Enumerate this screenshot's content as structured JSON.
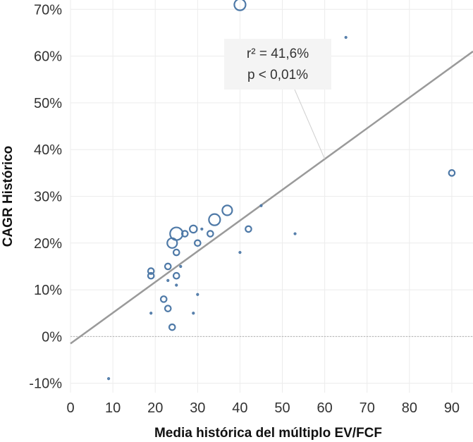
{
  "chart_data": {
    "type": "scatter",
    "title": "",
    "xlabel": "Media histórica del múltiplo EV/FCF",
    "ylabel": "CAGR Histórico",
    "xlim": [
      0,
      95
    ],
    "ylim": [
      -12,
      72
    ],
    "x_ticks": [
      0,
      10,
      20,
      30,
      40,
      50,
      60,
      70,
      80,
      90
    ],
    "x_tick_labels": [
      "0",
      "10",
      "20",
      "30",
      "40",
      "50",
      "60",
      "70",
      "80",
      "90"
    ],
    "y_ticks": [
      -10,
      0,
      10,
      20,
      30,
      40,
      50,
      60,
      70
    ],
    "y_tick_labels": [
      "-10%",
      "0%",
      "10%",
      "20%",
      "30%",
      "40%",
      "50%",
      "60%",
      "70%"
    ],
    "grid": true,
    "legend": "none",
    "colors": {
      "marker": "#4e79a7",
      "trendline": "#9a9a9a",
      "grid": "#ececec",
      "zero_line": "#b0b0b0",
      "annotation_bg": "#f4f4f4"
    },
    "points": [
      {
        "x": 40,
        "y": 71,
        "size": 5
      },
      {
        "x": 65,
        "y": 64,
        "size": 1
      },
      {
        "x": 90,
        "y": 35,
        "size": 2
      },
      {
        "x": 45,
        "y": 28,
        "size": 1
      },
      {
        "x": 37,
        "y": 27,
        "size": 4
      },
      {
        "x": 34,
        "y": 25,
        "size": 5
      },
      {
        "x": 29,
        "y": 23,
        "size": 3
      },
      {
        "x": 31,
        "y": 23,
        "size": 1
      },
      {
        "x": 42,
        "y": 23,
        "size": 2
      },
      {
        "x": 25,
        "y": 22,
        "size": 6
      },
      {
        "x": 27,
        "y": 22,
        "size": 2
      },
      {
        "x": 33,
        "y": 22,
        "size": 2
      },
      {
        "x": 53,
        "y": 22,
        "size": 1
      },
      {
        "x": 24,
        "y": 20,
        "size": 4
      },
      {
        "x": 30,
        "y": 20,
        "size": 2
      },
      {
        "x": 25,
        "y": 18,
        "size": 2
      },
      {
        "x": 40,
        "y": 18,
        "size": 1
      },
      {
        "x": 23,
        "y": 15,
        "size": 2
      },
      {
        "x": 26,
        "y": 15,
        "size": 1
      },
      {
        "x": 19,
        "y": 14,
        "size": 2
      },
      {
        "x": 19,
        "y": 13,
        "size": 2
      },
      {
        "x": 25,
        "y": 13,
        "size": 2
      },
      {
        "x": 23,
        "y": 12,
        "size": 1
      },
      {
        "x": 25,
        "y": 11,
        "size": 1
      },
      {
        "x": 30,
        "y": 9,
        "size": 1
      },
      {
        "x": 22,
        "y": 8,
        "size": 2
      },
      {
        "x": 23,
        "y": 6,
        "size": 2
      },
      {
        "x": 19,
        "y": 5,
        "size": 1
      },
      {
        "x": 29,
        "y": 5,
        "size": 1
      },
      {
        "x": 24,
        "y": 2,
        "size": 2
      },
      {
        "x": 9,
        "y": -9,
        "size": 1
      }
    ],
    "trendline": {
      "x": [
        0,
        95
      ],
      "y": [
        -1.5,
        61
      ]
    },
    "annotation": {
      "lines": [
        "r² = 41,6%",
        "p < 0,01%"
      ],
      "anchor": {
        "x": 60,
        "y": 38
      }
    }
  }
}
